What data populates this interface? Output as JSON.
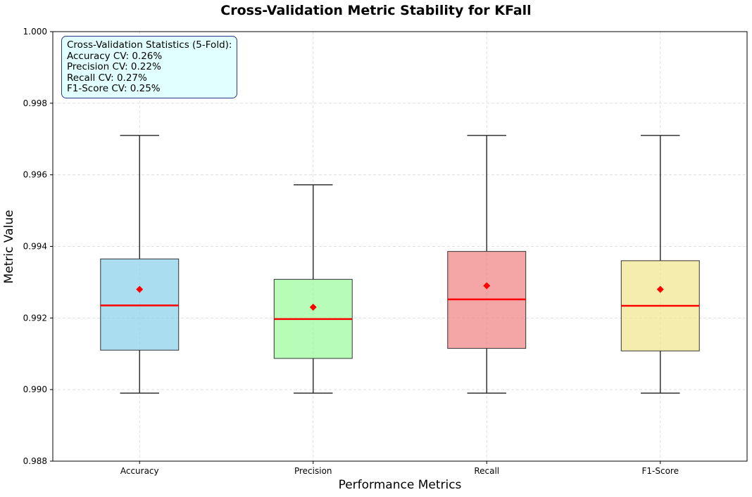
{
  "chart_data": {
    "type": "box",
    "title": "Cross-Validation Metric Stability for KFall",
    "xlabel": "Performance Metrics",
    "ylabel": "Metric Value",
    "ylim": [
      0.988,
      1.0
    ],
    "yticks": [
      "0.988",
      "0.990",
      "0.992",
      "0.994",
      "0.996",
      "0.998",
      "1.000"
    ],
    "grid": true,
    "categories": [
      "Accuracy",
      "Precision",
      "Recall",
      "F1-Score"
    ],
    "boxes": [
      {
        "label": "Accuracy",
        "whisker_low": 0.9899,
        "q1": 0.9911,
        "median": 0.99235,
        "q3": 0.99365,
        "whisker_high": 0.9971,
        "mean": 0.9928,
        "color": "#87ceeb"
      },
      {
        "label": "Precision",
        "whisker_low": 0.9899,
        "q1": 0.99087,
        "median": 0.99197,
        "q3": 0.99308,
        "whisker_high": 0.99572,
        "mean": 0.9923,
        "color": "#98fb98"
      },
      {
        "label": "Recall",
        "whisker_low": 0.9899,
        "q1": 0.99115,
        "median": 0.99252,
        "q3": 0.99386,
        "whisker_high": 0.9971,
        "mean": 0.9929,
        "color": "#f08080"
      },
      {
        "label": "F1-Score",
        "whisker_low": 0.9899,
        "q1": 0.99108,
        "median": 0.99234,
        "q3": 0.9936,
        "whisker_high": 0.9971,
        "mean": 0.9928,
        "color": "#f0e68c"
      }
    ],
    "median_color": "#ff0000",
    "mean_color": "#ff0000",
    "annotation": {
      "title": "Cross-Validation Statistics (5-Fold):",
      "lines": [
        "Accuracy CV: 0.26%",
        "Precision CV: 0.22%",
        "Recall CV: 0.27%",
        "F1-Score CV: 0.25%"
      ],
      "background": "#e1ffff",
      "border": "#2b3a8f",
      "placement": "top-left"
    }
  }
}
